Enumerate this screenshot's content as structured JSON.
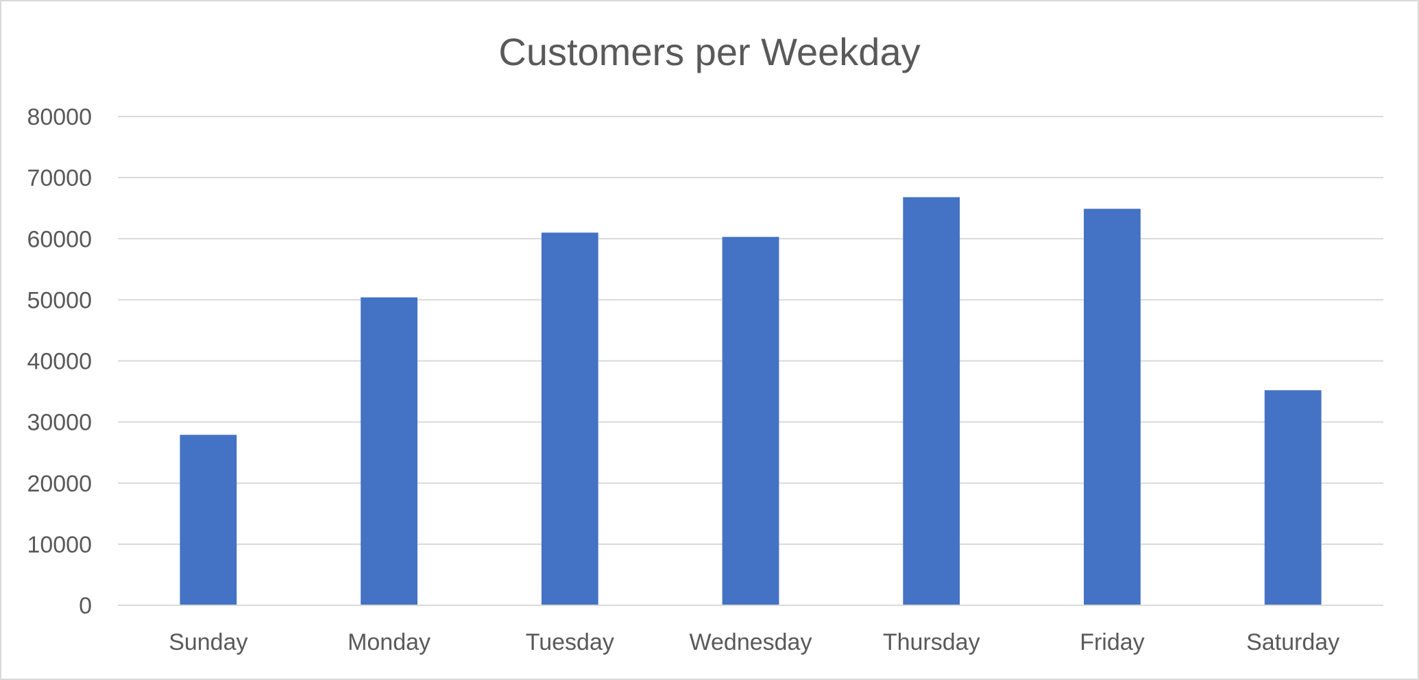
{
  "chart_data": {
    "type": "bar",
    "title": "Customers per Weekday",
    "xlabel": "",
    "ylabel": "",
    "categories": [
      "Sunday",
      "Monday",
      "Tuesday",
      "Wednesday",
      "Thursday",
      "Friday",
      "Saturday"
    ],
    "values": [
      27900,
      50400,
      61000,
      60300,
      66800,
      64900,
      35200
    ],
    "ylim": [
      0,
      80000
    ],
    "yticks": [
      0,
      10000,
      20000,
      30000,
      40000,
      50000,
      60000,
      70000,
      80000
    ],
    "ytick_labels": [
      "0",
      "10000",
      "20000",
      "30000",
      "40000",
      "50000",
      "60000",
      "70000",
      "80000"
    ],
    "grid": true,
    "legend": "none",
    "colors": {
      "bar": "#4472c4",
      "grid": "#d9d9d9",
      "text": "#595959",
      "border": "#d9d9d9"
    }
  }
}
